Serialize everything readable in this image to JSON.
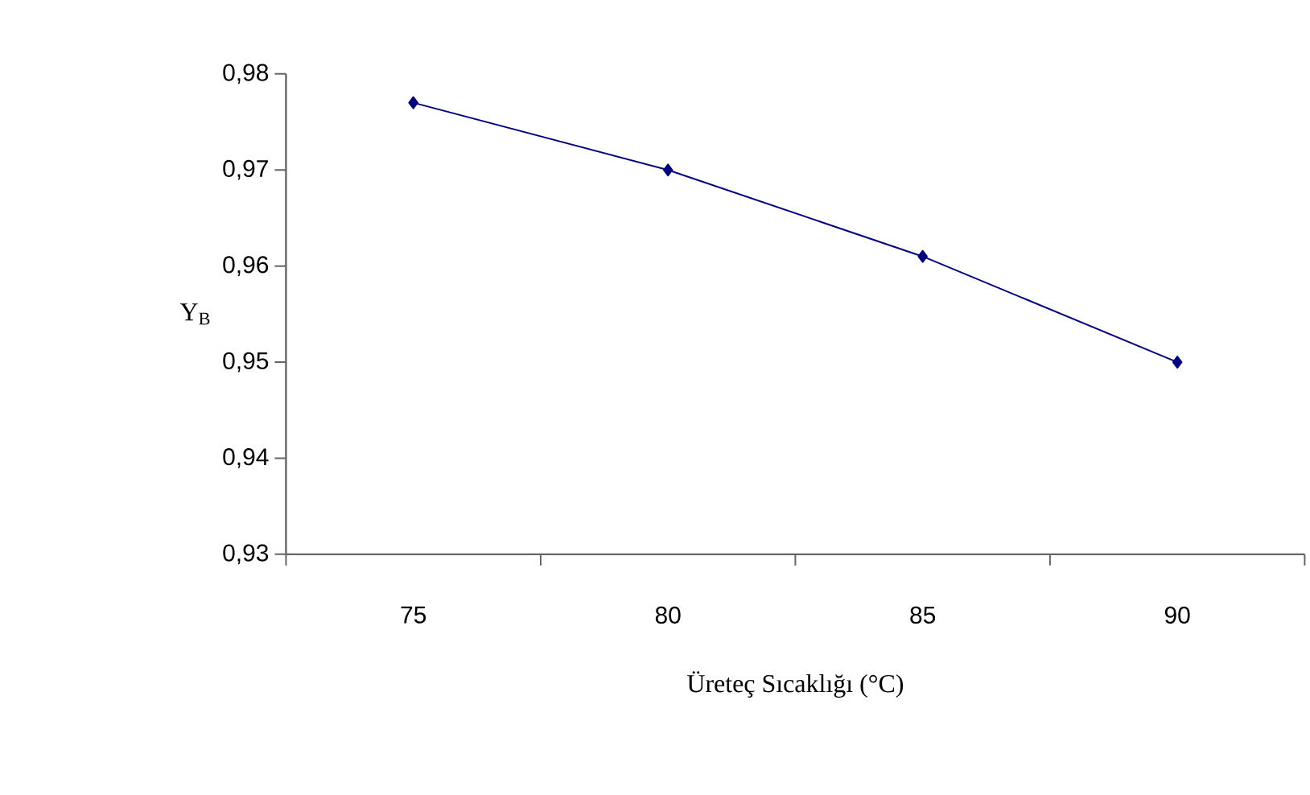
{
  "chart_data": {
    "type": "line",
    "xlabel": "Üreteç Sıcaklığı (°C)",
    "ylabel": "Y$_{B}$",
    "categories": [
      "75",
      "80",
      "85",
      "90"
    ],
    "series": [
      {
        "color": "#000080",
        "values": [
          0.977,
          0.97,
          0.961,
          0.95
        ]
      }
    ],
    "ylim": [
      0.93,
      0.98
    ],
    "yticks": [
      {
        "value": 0.93,
        "label": "0,93"
      },
      {
        "value": 0.94,
        "label": "0,94"
      },
      {
        "value": 0.95,
        "label": "0,95"
      },
      {
        "value": 0.96,
        "label": "0,96"
      },
      {
        "value": 0.97,
        "label": "0,97"
      },
      {
        "value": 0.98,
        "label": "0,98"
      }
    ],
    "marker": "diamond",
    "line_style": "solid",
    "grid": false
  }
}
